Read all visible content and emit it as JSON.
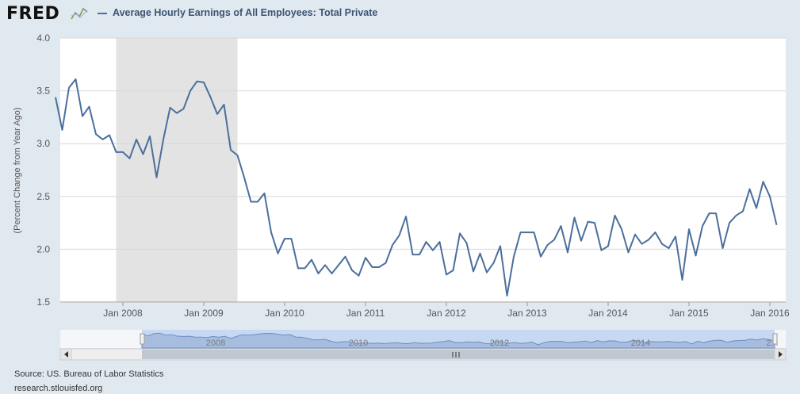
{
  "header": {
    "logo_text": "FRED",
    "series_title": "Average Hourly Earnings of All Employees: Total Private"
  },
  "footer": {
    "source": "Source: US. Bureau of Labor Statistics",
    "url": "research.stlouisfed.org"
  },
  "colors": {
    "line": "#4a6f9c",
    "recession": "#e3e3e3",
    "grid": "#d8d8d8",
    "navigator_fill": "#a6bde0",
    "navigator_mask": "#c6d8f2"
  },
  "chart_data": {
    "type": "line",
    "title": "",
    "ylabel": "(Percent Change from Year Ago)",
    "xlabel": "",
    "ylim": [
      1.5,
      4.0
    ],
    "yticks": [
      "1.5",
      "2.0",
      "2.5",
      "3.0",
      "3.5",
      "4.0"
    ],
    "xticks": [
      "Jan 2008",
      "Jan 2009",
      "Jan 2010",
      "Jan 2011",
      "Jan 2012",
      "Jan 2013",
      "Jan 2014",
      "Jan 2015",
      "Jan 2016"
    ],
    "recession": {
      "start": "2007-12",
      "end": "2009-06"
    },
    "grid": true,
    "series": [
      {
        "start": "2007-03",
        "frequency": "monthly",
        "values": [
          3.44,
          3.13,
          3.53,
          3.61,
          3.26,
          3.35,
          3.09,
          3.04,
          3.08,
          2.92,
          2.92,
          2.86,
          3.04,
          2.9,
          3.07,
          2.68,
          3.04,
          3.34,
          3.29,
          3.33,
          3.5,
          3.59,
          3.58,
          3.44,
          3.28,
          3.37,
          2.94,
          2.89,
          2.68,
          2.45,
          2.45,
          2.53,
          2.16,
          1.96,
          2.1,
          2.1,
          1.82,
          1.82,
          1.9,
          1.77,
          1.85,
          1.77,
          1.85,
          1.93,
          1.8,
          1.75,
          1.92,
          1.83,
          1.83,
          1.87,
          2.04,
          2.13,
          2.31,
          1.95,
          1.95,
          2.07,
          1.99,
          2.07,
          1.76,
          1.8,
          2.15,
          2.06,
          1.79,
          1.96,
          1.78,
          1.87,
          2.03,
          1.56,
          1.93,
          2.16,
          2.16,
          2.16,
          1.93,
          2.04,
          2.09,
          2.22,
          1.97,
          2.3,
          2.08,
          2.26,
          2.25,
          1.99,
          2.03,
          2.32,
          2.19,
          1.97,
          2.14,
          2.05,
          2.09,
          2.16,
          2.05,
          2.01,
          2.12,
          1.71,
          2.19,
          1.94,
          2.22,
          2.34,
          2.34,
          2.01,
          2.25,
          2.32,
          2.36,
          2.57,
          2.39,
          2.64,
          2.5,
          2.23
        ]
      }
    ],
    "navigator": {
      "labels": [
        "2008",
        "2010",
        "2012",
        "2014",
        "2..."
      ]
    }
  }
}
